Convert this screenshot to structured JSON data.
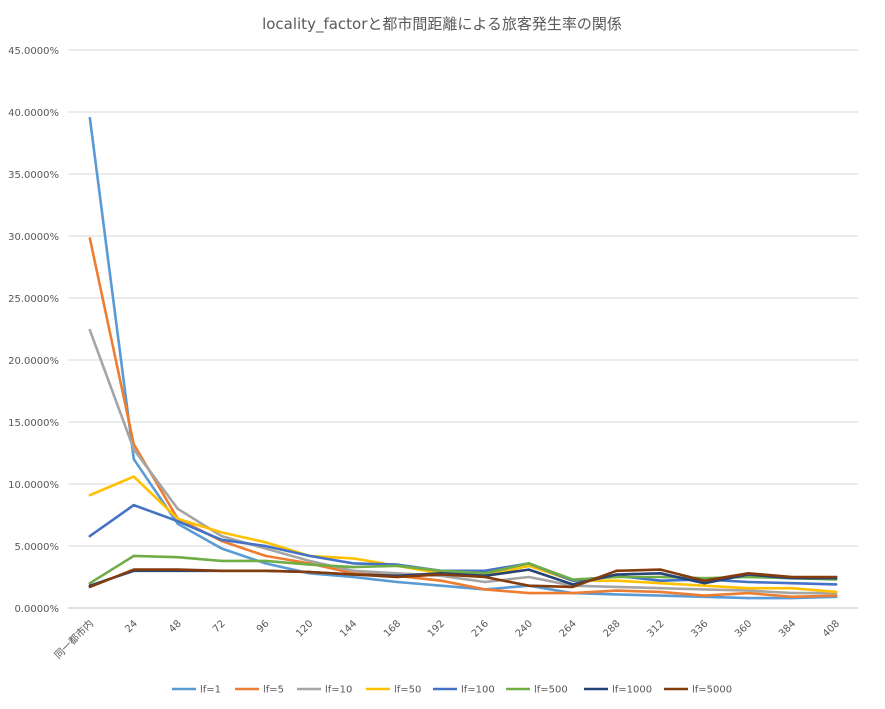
{
  "chart_data": {
    "type": "line",
    "title": "locality_factorと都市間距離による旅客発生率の関係",
    "xlabel": "",
    "ylabel": "",
    "ylim": [
      0,
      0.45
    ],
    "yticks": [
      0,
      0.05,
      0.1,
      0.15,
      0.2,
      0.25,
      0.3,
      0.35,
      0.4,
      0.45
    ],
    "ytick_labels": [
      "0.0000%",
      "5.0000%",
      "10.0000%",
      "15.0000%",
      "20.0000%",
      "25.0000%",
      "30.0000%",
      "35.0000%",
      "40.0000%",
      "45.0000%"
    ],
    "categories": [
      "同一都市内",
      "24",
      "48",
      "72",
      "96",
      "120",
      "144",
      "168",
      "192",
      "216",
      "240",
      "264",
      "288",
      "312",
      "336",
      "360",
      "384",
      "408"
    ],
    "grid": true,
    "legend_position": "bottom",
    "series": [
      {
        "name": "lf=1",
        "color": "#5B9BD5",
        "values": [
          0.395,
          0.12,
          0.068,
          0.048,
          0.036,
          0.028,
          0.025,
          0.021,
          0.018,
          0.015,
          0.018,
          0.012,
          0.011,
          0.01,
          0.009,
          0.008,
          0.008,
          0.009
        ]
      },
      {
        "name": "lf=5",
        "color": "#ED7D31",
        "values": [
          0.298,
          0.132,
          0.072,
          0.054,
          0.042,
          0.036,
          0.028,
          0.026,
          0.022,
          0.015,
          0.012,
          0.012,
          0.014,
          0.013,
          0.01,
          0.012,
          0.009,
          0.01
        ]
      },
      {
        "name": "lf=10",
        "color": "#A5A5A5",
        "values": [
          0.224,
          0.128,
          0.08,
          0.058,
          0.048,
          0.038,
          0.03,
          0.028,
          0.026,
          0.021,
          0.025,
          0.018,
          0.017,
          0.016,
          0.015,
          0.014,
          0.012,
          0.012
        ]
      },
      {
        "name": "lf=50",
        "color": "#FFC000",
        "values": [
          0.091,
          0.106,
          0.072,
          0.061,
          0.053,
          0.042,
          0.04,
          0.034,
          0.028,
          0.026,
          0.034,
          0.022,
          0.022,
          0.02,
          0.018,
          0.016,
          0.016,
          0.013
        ]
      },
      {
        "name": "lf=100",
        "color": "#4472C4",
        "values": [
          0.058,
          0.083,
          0.07,
          0.055,
          0.05,
          0.042,
          0.036,
          0.035,
          0.03,
          0.03,
          0.036,
          0.022,
          0.026,
          0.022,
          0.023,
          0.021,
          0.02,
          0.019
        ]
      },
      {
        "name": "lf=500",
        "color": "#70AD47",
        "values": [
          0.02,
          0.042,
          0.041,
          0.038,
          0.038,
          0.035,
          0.033,
          0.034,
          0.03,
          0.028,
          0.036,
          0.023,
          0.025,
          0.025,
          0.024,
          0.025,
          0.024,
          0.023
        ]
      },
      {
        "name": "lf=1000",
        "color": "#264478",
        "values": [
          0.018,
          0.03,
          0.03,
          0.03,
          0.03,
          0.029,
          0.027,
          0.026,
          0.028,
          0.026,
          0.031,
          0.019,
          0.027,
          0.028,
          0.02,
          0.027,
          0.024,
          0.024
        ]
      },
      {
        "name": "lf=5000",
        "color": "#843C0C",
        "values": [
          0.017,
          0.031,
          0.031,
          0.03,
          0.03,
          0.029,
          0.027,
          0.025,
          0.027,
          0.025,
          0.018,
          0.017,
          0.03,
          0.031,
          0.022,
          0.028,
          0.025,
          0.025
        ]
      }
    ]
  }
}
